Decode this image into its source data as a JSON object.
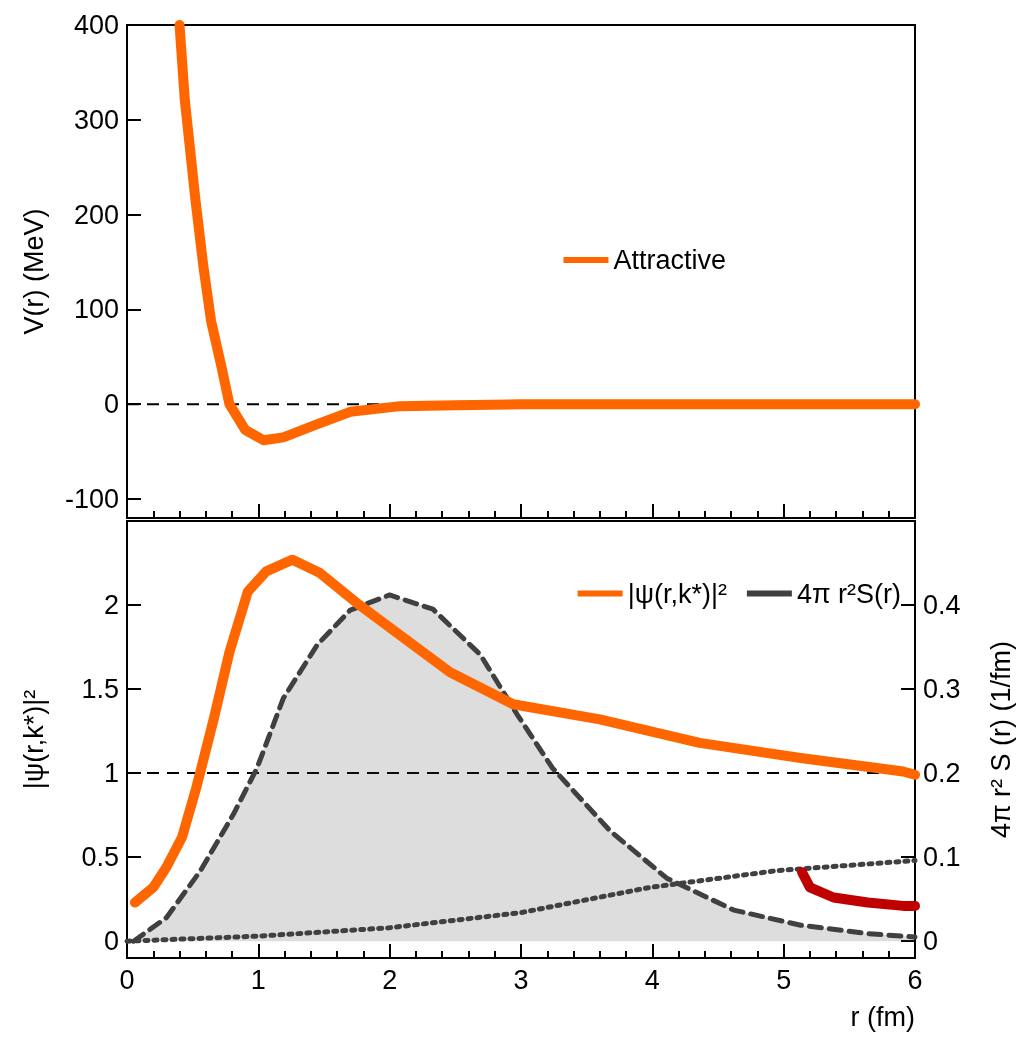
{
  "chart_data": [
    {
      "type": "line",
      "ylabel": "V(r) (MeV)",
      "xlim": [
        0,
        6
      ],
      "xticks": [
        0,
        1,
        2,
        3,
        4,
        5,
        6
      ],
      "ylim": [
        -120,
        400
      ],
      "yticks": [
        -100,
        0,
        100,
        200,
        300,
        400
      ],
      "tick_labels": "y",
      "legend": "right",
      "marker": "none",
      "grid": false,
      "ref_lines": [
        {
          "axis": "y",
          "value": 0,
          "color": "#000000",
          "line_style": "dashed"
        }
      ],
      "series": [
        {
          "name": "Attractive",
          "color": "#ff6600",
          "x": [
            0.4,
            0.44,
            0.52,
            0.58,
            0.64,
            0.72,
            0.78,
            0.9,
            1.04,
            1.19,
            1.45,
            1.7,
            2.08,
            2.5,
            3,
            4,
            5,
            6
          ],
          "values": [
            400,
            321,
            217,
            147,
            88,
            39,
            0,
            -27,
            -38,
            -35,
            -21,
            -8,
            -2,
            -1,
            0,
            0,
            0,
            0
          ]
        }
      ]
    },
    {
      "type": "line",
      "xlabel": "r (fm)",
      "ylabel": "|ψ(r,k*)|²",
      "y2label": "4π r² S (r) (1/fm)",
      "xlim": [
        0,
        6
      ],
      "xticks": [
        0,
        1,
        2,
        3,
        4,
        5,
        6
      ],
      "ylim": [
        -0.1,
        2.5
      ],
      "yticks": [
        0,
        0.5,
        1,
        1.5,
        2
      ],
      "y2lim": [
        -0.02,
        0.5
      ],
      "y2ticks": [
        0,
        0.1,
        0.2,
        0.3,
        0.4
      ],
      "legend": "top right",
      "marker": "none",
      "grid": false,
      "ref_lines": [
        {
          "axis": "y",
          "value": 1,
          "color": "#000000",
          "line_style": "dashed"
        }
      ],
      "series": [
        {
          "name": "|ψ(r,k*)|²",
          "color": "#ff6600",
          "x": [
            0.06,
            0.2,
            0.3,
            0.42,
            0.53,
            0.66,
            0.78,
            0.92,
            1.06,
            1.26,
            1.47,
            1.77,
            2.08,
            2.46,
            2.94,
            3.6,
            4.36,
            5.13,
            5.91,
            6
          ],
          "values": [
            0.23,
            0.32,
            0.44,
            0.62,
            0.92,
            1.32,
            1.72,
            2.08,
            2.2,
            2.27,
            2.19,
            2.0,
            1.82,
            1.6,
            1.41,
            1.32,
            1.18,
            1.09,
            1.01,
            0.99
          ]
        },
        {
          "name": "4π r²S(r)",
          "type": "area",
          "axis": "y2",
          "line_style": "dashed",
          "color": "#404040",
          "x": [
            0.05,
            0.3,
            0.56,
            0.81,
            0.99,
            1.19,
            1.45,
            1.7,
            2.0,
            2.33,
            2.69,
            2.97,
            3.24,
            3.68,
            4.11,
            4.62,
            5.13,
            5.64,
            6
          ],
          "values": [
            0,
            0.028,
            0.084,
            0.151,
            0.206,
            0.289,
            0.353,
            0.394,
            0.412,
            0.395,
            0.341,
            0.27,
            0.206,
            0.131,
            0.075,
            0.037,
            0.019,
            0.009,
            0.005
          ]
        },
        {
          "color": "#404040",
          "line_style": "dotted",
          "x": [
            0,
            1,
            2,
            3,
            3.98,
            4.95,
            6
          ],
          "values": [
            0,
            0.03,
            0.08,
            0.17,
            0.32,
            0.42,
            0.48
          ]
        },
        {
          "color": "#c00000",
          "x": [
            5.14,
            5.2,
            5.38,
            5.64,
            5.91,
            6
          ],
          "values": [
            0.41,
            0.32,
            0.26,
            0.23,
            0.21,
            0.21
          ]
        }
      ]
    }
  ]
}
